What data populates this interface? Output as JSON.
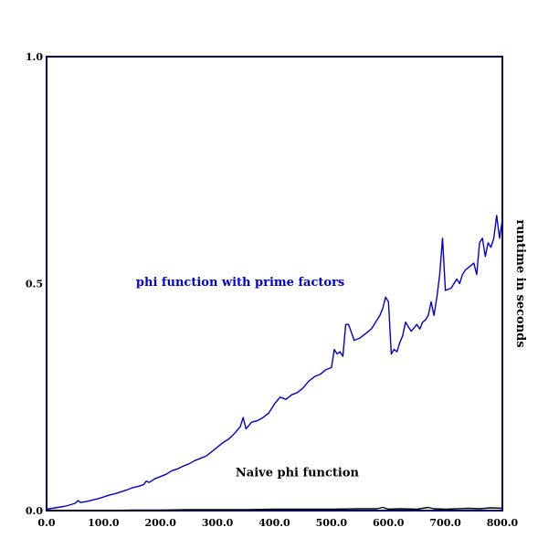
{
  "chart_data": {
    "type": "line",
    "title": "",
    "xlabel": "",
    "ylabel": "runtime in seconds",
    "xlim": [
      0,
      800
    ],
    "ylim": [
      0,
      1
    ],
    "grid": false,
    "x_ticks": [
      "0.0",
      "100.0",
      "200.0",
      "300.0",
      "400.0",
      "500.0",
      "600.0",
      "700.0",
      "800.0"
    ],
    "y_ticks": [
      "0.0",
      "0.5",
      "1.0"
    ],
    "series": [
      {
        "name": "phi function with prime factors",
        "color": "#0000cc",
        "x": [
          0,
          10,
          20,
          30,
          40,
          50,
          55,
          60,
          70,
          80,
          90,
          100,
          110,
          120,
          130,
          140,
          150,
          160,
          170,
          175,
          180,
          190,
          200,
          210,
          220,
          230,
          240,
          250,
          260,
          270,
          280,
          290,
          300,
          310,
          320,
          330,
          340,
          345,
          350,
          360,
          370,
          380,
          390,
          395,
          400,
          410,
          420,
          430,
          440,
          450,
          460,
          470,
          480,
          490,
          500,
          505,
          510,
          515,
          520,
          525,
          530,
          540,
          550,
          560,
          570,
          575,
          580,
          585,
          590,
          595,
          600,
          605,
          610,
          615,
          620,
          625,
          630,
          640,
          650,
          655,
          660,
          665,
          670,
          675,
          680,
          685,
          690,
          695,
          700,
          710,
          720,
          725,
          730,
          735,
          740,
          750,
          755,
          760,
          765,
          770,
          775,
          780,
          785,
          790,
          795,
          800
        ],
        "y": [
          0.003,
          0.005,
          0.007,
          0.009,
          0.012,
          0.016,
          0.022,
          0.018,
          0.02,
          0.023,
          0.026,
          0.03,
          0.034,
          0.037,
          0.041,
          0.045,
          0.05,
          0.053,
          0.057,
          0.065,
          0.062,
          0.07,
          0.075,
          0.08,
          0.088,
          0.092,
          0.098,
          0.103,
          0.11,
          0.115,
          0.12,
          0.13,
          0.14,
          0.15,
          0.158,
          0.17,
          0.185,
          0.205,
          0.18,
          0.195,
          0.198,
          0.205,
          0.215,
          0.225,
          0.235,
          0.25,
          0.245,
          0.255,
          0.26,
          0.27,
          0.285,
          0.295,
          0.3,
          0.31,
          0.315,
          0.355,
          0.345,
          0.35,
          0.34,
          0.41,
          0.41,
          0.375,
          0.38,
          0.39,
          0.4,
          0.41,
          0.42,
          0.43,
          0.445,
          0.47,
          0.46,
          0.345,
          0.355,
          0.35,
          0.37,
          0.385,
          0.415,
          0.395,
          0.41,
          0.4,
          0.415,
          0.42,
          0.43,
          0.46,
          0.43,
          0.47,
          0.52,
          0.6,
          0.485,
          0.49,
          0.51,
          0.5,
          0.52,
          0.53,
          0.535,
          0.545,
          0.52,
          0.59,
          0.6,
          0.56,
          0.59,
          0.58,
          0.6,
          0.65,
          0.6,
          0.64
        ]
      },
      {
        "name": "Naive phi function",
        "color": "#000000",
        "x": [
          0,
          50,
          100,
          150,
          200,
          250,
          300,
          350,
          400,
          450,
          500,
          550,
          580,
          590,
          600,
          620,
          650,
          670,
          680,
          700,
          740,
          760,
          780,
          800
        ],
        "y": [
          0.0,
          0.0,
          0.0,
          0.001,
          0.001,
          0.002,
          0.002,
          0.002,
          0.003,
          0.003,
          0.003,
          0.004,
          0.004,
          0.007,
          0.003,
          0.004,
          0.003,
          0.007,
          0.004,
          0.003,
          0.005,
          0.004,
          0.006,
          0.005
        ]
      }
    ],
    "annotations": [
      {
        "text": "phi function with prime factors",
        "x": 340,
        "y": 0.495,
        "color": "#0000cc"
      },
      {
        "text": "Naive phi function",
        "x": 440,
        "y": 0.075,
        "color": "#000000"
      }
    ]
  }
}
